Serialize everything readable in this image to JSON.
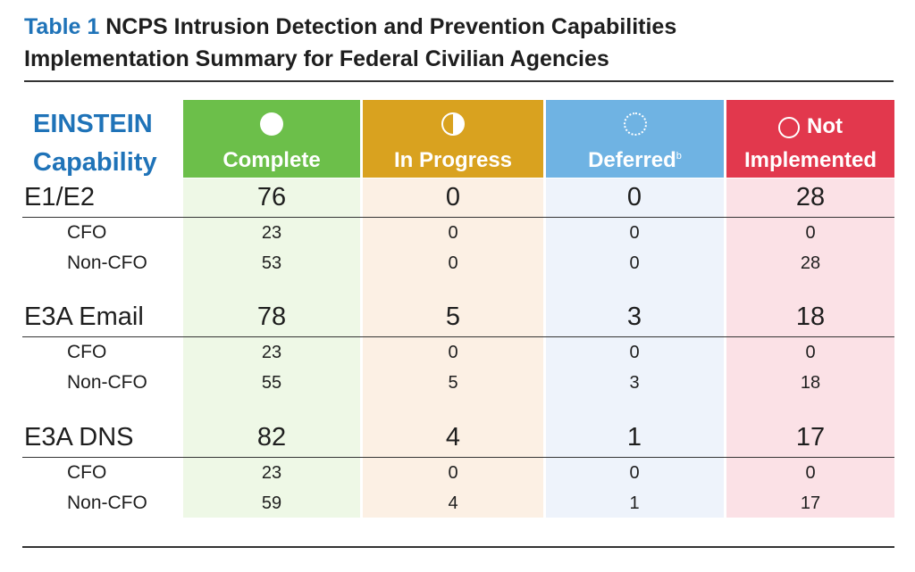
{
  "title": {
    "number": "Table 1",
    "line1": "NCPS Intrusion Detection and Prevention Capabilities",
    "line2": "Implementation Summary for Federal Civilian Agencies"
  },
  "header": {
    "capability": [
      "EINSTEIN",
      "Capability"
    ],
    "columns": [
      {
        "label": "Complete",
        "symbol": "filled-circle-icon",
        "color": "#6cbf4a",
        "bg": "#eef8e6"
      },
      {
        "label": "In Progress",
        "symbol": "half-circle-icon",
        "color": "#d9a21f",
        "bg": "#fcf0e4"
      },
      {
        "label": "Deferred",
        "label_sup": "b",
        "symbol": "dotted-circle-icon",
        "color": "#6fb3e3",
        "bg": "#eef3fb"
      },
      {
        "label": "Not",
        "label2": "Implemented",
        "symbol": "open-circle-icon",
        "color": "#e2384d",
        "bg": "#fbe1e6"
      }
    ]
  },
  "groups": [
    {
      "name": "E1/E2",
      "values": [
        "76",
        "0",
        "0",
        "28"
      ],
      "rows": [
        {
          "name": "CFO",
          "values": [
            "23",
            "0",
            "0",
            "0"
          ]
        },
        {
          "name": "Non-CFO",
          "values": [
            "53",
            "0",
            "0",
            "28"
          ]
        }
      ]
    },
    {
      "name": "E3A Email",
      "values": [
        "78",
        "5",
        "3",
        "18"
      ],
      "rows": [
        {
          "name": "CFO",
          "values": [
            "23",
            "0",
            "0",
            "0"
          ]
        },
        {
          "name": "Non-CFO",
          "values": [
            "55",
            "5",
            "3",
            "18"
          ]
        }
      ]
    },
    {
      "name": "E3A DNS",
      "values": [
        "82",
        "4",
        "1",
        "17"
      ],
      "rows": [
        {
          "name": "CFO",
          "values": [
            "23",
            "0",
            "0",
            "0"
          ]
        },
        {
          "name": "Non-CFO",
          "values": [
            "59",
            "4",
            "1",
            "17"
          ]
        }
      ]
    }
  ]
}
